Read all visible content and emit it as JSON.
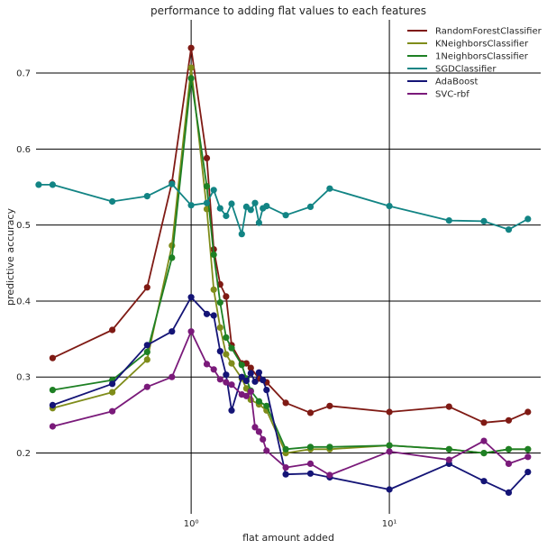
{
  "chart_data": {
    "type": "line",
    "title": "performance to adding flat values to each features",
    "xlabel": "flat amount added",
    "ylabel": "predictive accuracy",
    "xscale": "log",
    "xlim": [
      0.165,
      58
    ],
    "ylim": [
      0.12,
      0.77
    ],
    "x_major_ticks": [
      1,
      10
    ],
    "x_tick_labels": [
      "10⁰",
      "10¹"
    ],
    "y_ticks": [
      0.2,
      0.3,
      0.4,
      0.5,
      0.6,
      0.7
    ],
    "y_tick_labels": [
      "0.2",
      "0.3",
      "0.4",
      "0.5",
      "0.6",
      "0.7"
    ],
    "grid": true,
    "legend_position": "top-right",
    "series": [
      {
        "name": "RandomForestClassifier",
        "color": "#7f1a14",
        "points": [
          [
            0.2,
            0.325
          ],
          [
            0.4,
            0.362
          ],
          [
            0.6,
            0.418
          ],
          [
            0.8,
            0.556
          ],
          [
            1.0,
            0.733
          ],
          [
            1.2,
            0.588
          ],
          [
            1.3,
            0.468
          ],
          [
            1.4,
            0.422
          ],
          [
            1.5,
            0.406
          ],
          [
            1.6,
            0.342
          ],
          [
            1.8,
            0.318
          ],
          [
            1.9,
            0.318
          ],
          [
            2.0,
            0.312
          ],
          [
            2.2,
            0.298
          ],
          [
            2.4,
            0.293
          ],
          [
            3.0,
            0.266
          ],
          [
            4.0,
            0.253
          ],
          [
            5.0,
            0.262
          ],
          [
            10,
            0.254
          ],
          [
            20,
            0.261
          ],
          [
            30,
            0.24
          ],
          [
            40,
            0.243
          ],
          [
            50,
            0.254
          ]
        ]
      },
      {
        "name": "KNeighborsClassifier",
        "color": "#7f8c1a",
        "points": [
          [
            0.2,
            0.259
          ],
          [
            0.4,
            0.28
          ],
          [
            0.6,
            0.323
          ],
          [
            0.8,
            0.473
          ],
          [
            1.0,
            0.707
          ],
          [
            1.2,
            0.521
          ],
          [
            1.3,
            0.415
          ],
          [
            1.4,
            0.365
          ],
          [
            1.5,
            0.33
          ],
          [
            1.6,
            0.318
          ],
          [
            1.8,
            0.298
          ],
          [
            1.9,
            0.285
          ],
          [
            2.0,
            0.27
          ],
          [
            2.2,
            0.264
          ],
          [
            2.4,
            0.256
          ],
          [
            3.0,
            0.2
          ],
          [
            4.0,
            0.205
          ],
          [
            5.0,
            0.205
          ],
          [
            10,
            0.21
          ],
          [
            20,
            0.205
          ],
          [
            30,
            0.2
          ],
          [
            40,
            0.205
          ],
          [
            50,
            0.205
          ]
        ]
      },
      {
        "name": "1NeighborsClassifier",
        "color": "#1e8024",
        "points": [
          [
            0.2,
            0.283
          ],
          [
            0.4,
            0.296
          ],
          [
            0.6,
            0.333
          ],
          [
            0.8,
            0.457
          ],
          [
            1.0,
            0.693
          ],
          [
            1.2,
            0.551
          ],
          [
            1.3,
            0.461
          ],
          [
            1.4,
            0.398
          ],
          [
            1.5,
            0.352
          ],
          [
            1.6,
            0.338
          ],
          [
            1.8,
            0.316
          ],
          [
            1.9,
            0.298
          ],
          [
            2.0,
            0.282
          ],
          [
            2.2,
            0.268
          ],
          [
            2.4,
            0.262
          ],
          [
            3.0,
            0.205
          ],
          [
            4.0,
            0.208
          ],
          [
            5.0,
            0.208
          ],
          [
            10,
            0.21
          ],
          [
            20,
            0.205
          ],
          [
            30,
            0.2
          ],
          [
            40,
            0.205
          ],
          [
            50,
            0.205
          ]
        ]
      },
      {
        "name": "SGDClassifier",
        "color": "#128484",
        "points": [
          [
            0.17,
            0.553
          ],
          [
            0.2,
            0.553
          ],
          [
            0.4,
            0.531
          ],
          [
            0.6,
            0.538
          ],
          [
            0.8,
            0.554
          ],
          [
            1.0,
            0.526
          ],
          [
            1.2,
            0.529
          ],
          [
            1.3,
            0.546
          ],
          [
            1.4,
            0.522
          ],
          [
            1.5,
            0.512
          ],
          [
            1.6,
            0.528
          ],
          [
            1.8,
            0.488
          ],
          [
            1.9,
            0.524
          ],
          [
            2.0,
            0.52
          ],
          [
            2.1,
            0.529
          ],
          [
            2.2,
            0.503
          ],
          [
            2.3,
            0.522
          ],
          [
            2.4,
            0.525
          ],
          [
            3.0,
            0.513
          ],
          [
            4.0,
            0.524
          ],
          [
            5.0,
            0.548
          ],
          [
            10,
            0.525
          ],
          [
            20,
            0.506
          ],
          [
            30,
            0.505
          ],
          [
            40,
            0.494
          ],
          [
            50,
            0.508
          ]
        ]
      },
      {
        "name": "AdaBoost",
        "color": "#141476",
        "points": [
          [
            0.2,
            0.263
          ],
          [
            0.4,
            0.291
          ],
          [
            0.6,
            0.342
          ],
          [
            0.8,
            0.36
          ],
          [
            1.0,
            0.405
          ],
          [
            1.2,
            0.383
          ],
          [
            1.3,
            0.381
          ],
          [
            1.4,
            0.334
          ],
          [
            1.5,
            0.303
          ],
          [
            1.6,
            0.256
          ],
          [
            1.8,
            0.3
          ],
          [
            1.9,
            0.295
          ],
          [
            2.0,
            0.305
          ],
          [
            2.1,
            0.294
          ],
          [
            2.2,
            0.306
          ],
          [
            2.3,
            0.296
          ],
          [
            2.4,
            0.283
          ],
          [
            3.0,
            0.172
          ],
          [
            4.0,
            0.173
          ],
          [
            5.0,
            0.168
          ],
          [
            10,
            0.152
          ],
          [
            20,
            0.186
          ],
          [
            30,
            0.163
          ],
          [
            40,
            0.148
          ],
          [
            50,
            0.175
          ]
        ]
      },
      {
        "name": "SVC-rbf",
        "color": "#7a1a7a",
        "points": [
          [
            0.2,
            0.235
          ],
          [
            0.4,
            0.255
          ],
          [
            0.6,
            0.287
          ],
          [
            0.8,
            0.3
          ],
          [
            1.0,
            0.36
          ],
          [
            1.2,
            0.317
          ],
          [
            1.3,
            0.31
          ],
          [
            1.4,
            0.297
          ],
          [
            1.5,
            0.293
          ],
          [
            1.6,
            0.29
          ],
          [
            1.8,
            0.277
          ],
          [
            1.9,
            0.275
          ],
          [
            2.0,
            0.281
          ],
          [
            2.1,
            0.234
          ],
          [
            2.2,
            0.228
          ],
          [
            2.3,
            0.218
          ],
          [
            2.4,
            0.203
          ],
          [
            3.0,
            0.181
          ],
          [
            4.0,
            0.186
          ],
          [
            5.0,
            0.171
          ],
          [
            10,
            0.202
          ],
          [
            20,
            0.191
          ],
          [
            30,
            0.216
          ],
          [
            40,
            0.186
          ],
          [
            50,
            0.195
          ]
        ]
      }
    ]
  }
}
